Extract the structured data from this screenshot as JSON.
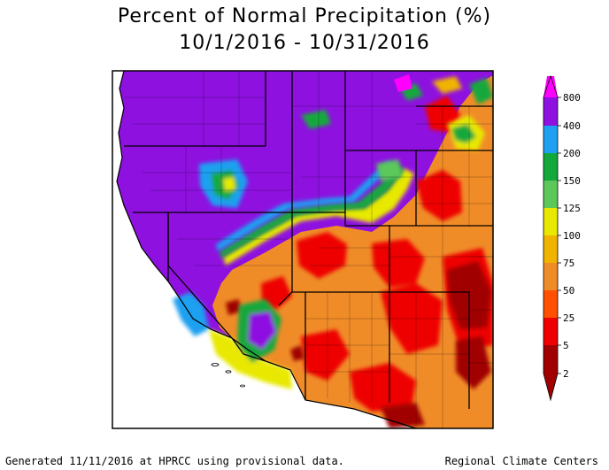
{
  "title": {
    "line1": "Percent of Normal Precipitation (%)",
    "line2": "10/1/2016 - 10/31/2016"
  },
  "legend": {
    "labels": [
      "800",
      "400",
      "200",
      "150",
      "125",
      "100",
      "75",
      "50",
      "25",
      "5",
      "2"
    ],
    "colors": {
      "magenta": "#ff00ff",
      "c400": "#8e11e0",
      "c200": "#1ea0f0",
      "c150": "#12a83c",
      "c125": "#5cc85c",
      "c100": "#e8e800",
      "c75": "#f0b400",
      "c50": "#f08c28",
      "c25": "#ff5000",
      "c5": "#ee0000",
      "c2": "#a00000"
    }
  },
  "footer": {
    "left": "Generated 11/11/2016 at HPRCC using provisional data.",
    "right": "Regional Climate Centers"
  }
}
